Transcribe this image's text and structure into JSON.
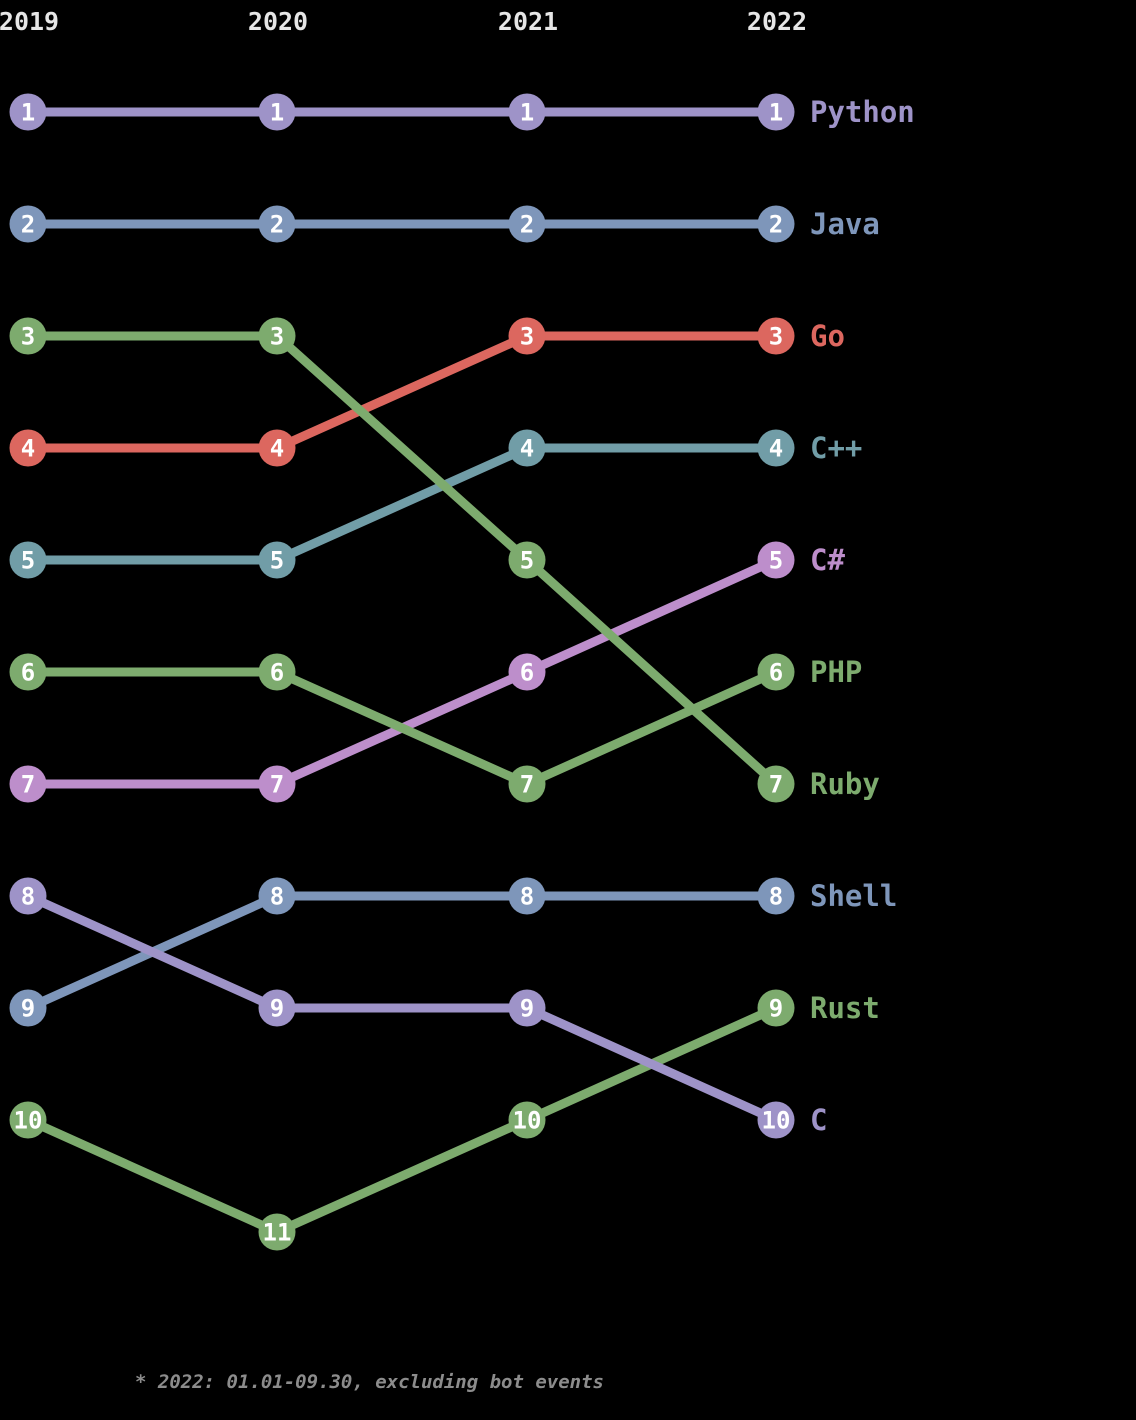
{
  "chart_data": {
    "type": "line",
    "subtype": "bump-rank-chart",
    "years": [
      "2019",
      "2020",
      "2021",
      "2022"
    ],
    "rank_axis": {
      "min": 1,
      "max": 11,
      "direction": "down",
      "grid": false
    },
    "legend_position": "right",
    "series": [
      {
        "name": "Python",
        "color": "#9e93c8",
        "ranks": [
          1,
          1,
          1,
          1
        ]
      },
      {
        "name": "Java",
        "color": "#7e96ba",
        "ranks": [
          2,
          2,
          2,
          2
        ]
      },
      {
        "name": "Go",
        "color": "#dc675f",
        "ranks": [
          4,
          4,
          3,
          3
        ]
      },
      {
        "name": "C++",
        "color": "#719da7",
        "ranks": [
          5,
          5,
          4,
          4
        ]
      },
      {
        "name": "C#",
        "color": "#bd8ecb",
        "ranks": [
          7,
          7,
          6,
          5
        ]
      },
      {
        "name": "PHP",
        "color": "#7dab6e",
        "ranks": [
          6,
          6,
          7,
          6
        ]
      },
      {
        "name": "Ruby",
        "color": "#7dab6e",
        "ranks": [
          3,
          3,
          5,
          7
        ]
      },
      {
        "name": "Shell",
        "color": "#7e96ba",
        "ranks": [
          9,
          8,
          8,
          8
        ]
      },
      {
        "name": "Rust",
        "color": "#7dab6e",
        "ranks": [
          10,
          11,
          10,
          9
        ]
      },
      {
        "name": "C",
        "color": "#9e93c8",
        "ranks": [
          8,
          9,
          9,
          10
        ]
      }
    ],
    "footnote": "* 2022: 01.01-09.30, excluding bot events"
  },
  "theme": {
    "background": "#000000",
    "year_label_color": "#e6e6e6",
    "marker_number_color": "#ffffff",
    "footnote_color": "#8c8c8c"
  }
}
